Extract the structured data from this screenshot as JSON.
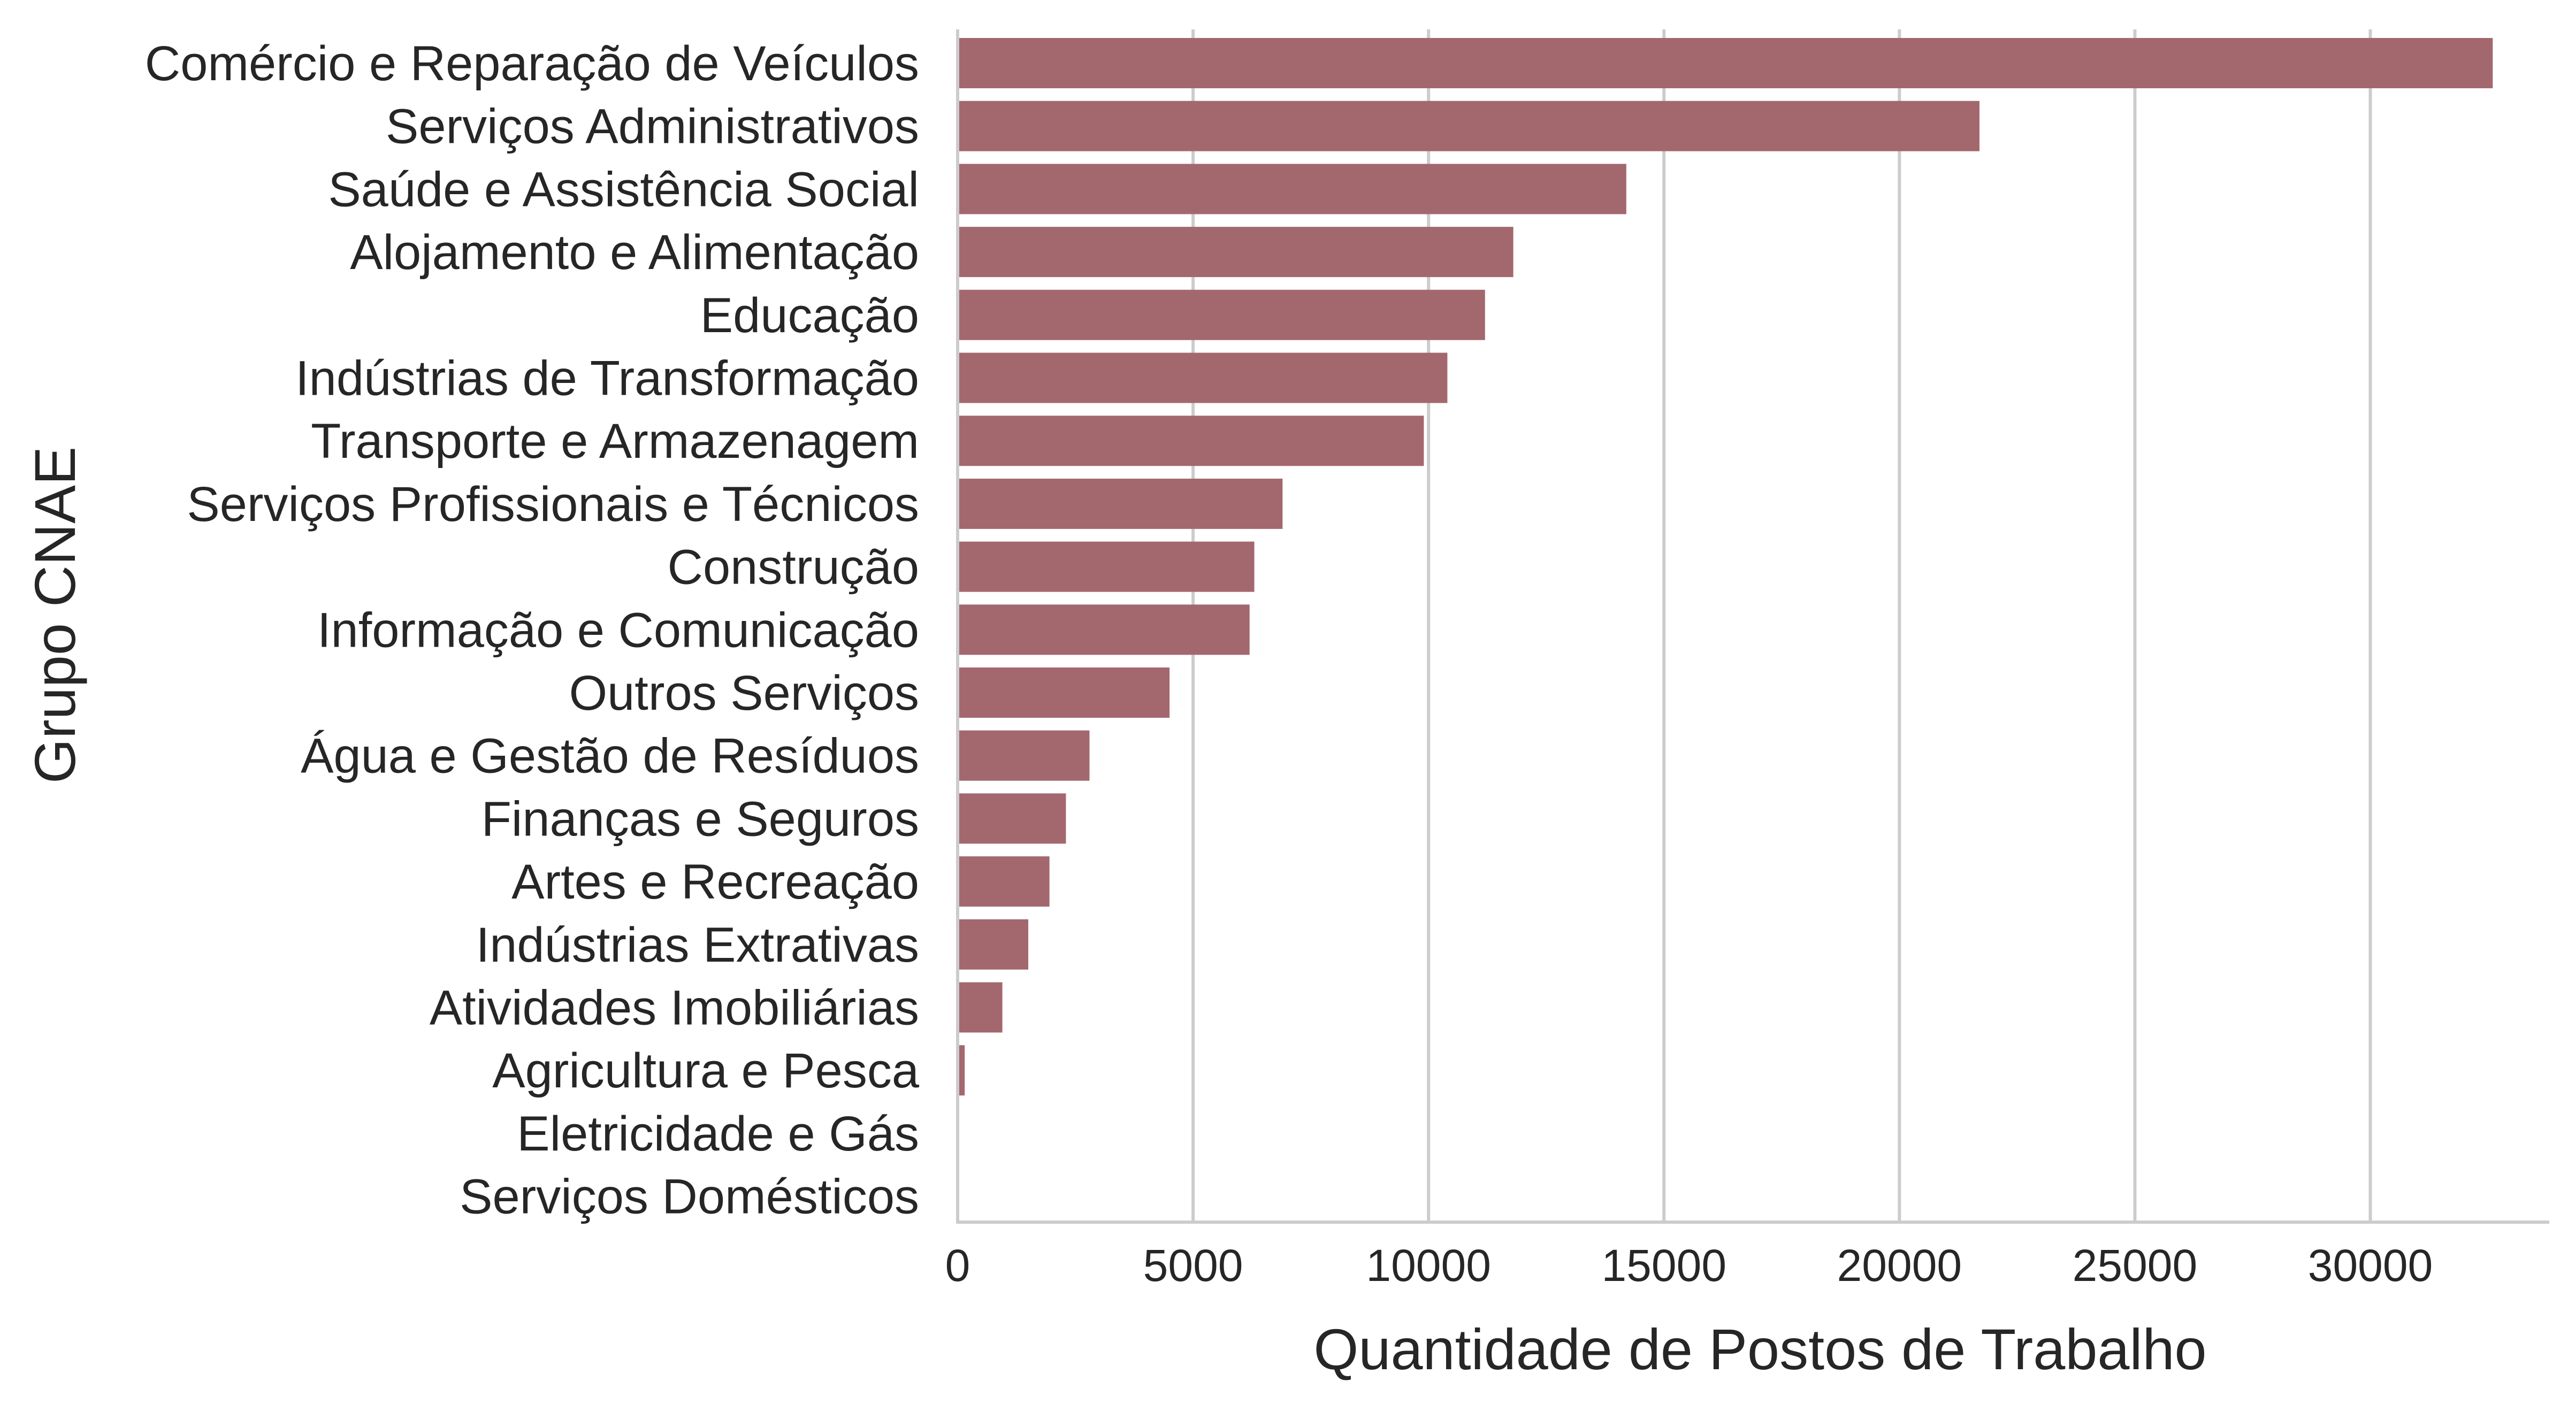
{
  "chart_data": {
    "type": "bar",
    "orientation": "horizontal",
    "title": "",
    "xlabel": "Quantidade de Postos de Trabalho",
    "ylabel": "Grupo CNAE",
    "xlim": [
      0,
      33800
    ],
    "xticks": [
      0,
      5000,
      10000,
      15000,
      20000,
      25000,
      30000
    ],
    "grid": "vertical",
    "bar_color": "#a3686e",
    "categories": [
      "Comércio e Reparação de Veículos",
      "Serviços Administrativos",
      "Saúde e Assistência Social",
      "Alojamento e Alimentação",
      "Educação",
      "Indústrias de Transformação",
      "Transporte e Armazenagem",
      "Serviços Profissionais e Técnicos",
      "Construção",
      "Informação e Comunicação",
      "Outros Serviços",
      "Água e Gestão de Resíduos",
      "Finanças e Seguros",
      "Artes e Recreação",
      "Indústrias Extrativas",
      "Atividades Imobiliárias",
      "Agricultura e Pesca",
      "Eletricidade e Gás",
      "Serviços Domésticos"
    ],
    "values": [
      32600,
      21700,
      14200,
      11800,
      11200,
      10400,
      9900,
      6900,
      6300,
      6200,
      4500,
      2800,
      2300,
      1950,
      1500,
      950,
      150,
      20,
      0
    ]
  }
}
